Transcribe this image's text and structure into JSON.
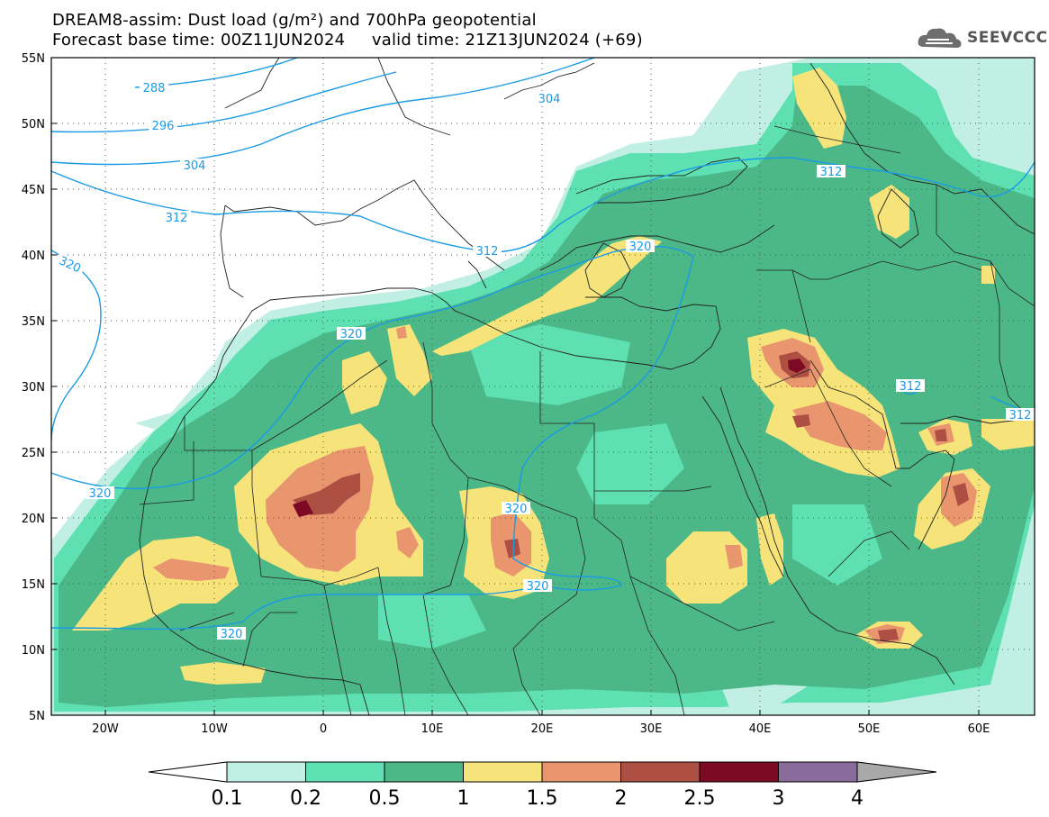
{
  "title": {
    "line1": "DREAM8-assim: Dust load (g/m²) and 700hPa geopotential",
    "line2": "Forecast base time: 00Z11JUN2024     valid time: 21Z13JUN2024 (+69)"
  },
  "logo_text": "SEEVCCC",
  "map": {
    "lat_labels": [
      "55N",
      "50N",
      "45N",
      "40N",
      "35N",
      "30N",
      "25N",
      "20N",
      "15N",
      "10N",
      "5N"
    ],
    "lon_labels": [
      "20W",
      "10W",
      "0",
      "10E",
      "20E",
      "30E",
      "40E",
      "50E",
      "60E"
    ],
    "contour_labels": [
      "288",
      "296",
      "304",
      "304",
      "312",
      "312",
      "312",
      "312",
      "312",
      "320",
      "320",
      "320",
      "320",
      "320",
      "320",
      "320"
    ]
  },
  "colorbar": {
    "ticks": [
      "0.1",
      "0.2",
      "0.5",
      "1",
      "1.5",
      "2",
      "2.5",
      "3",
      "4"
    ],
    "colors": [
      "#c2efe4",
      "#5fe0b2",
      "#4cb787",
      "#f6e47b",
      "#e9956e",
      "#ad4f42",
      "#7d0a25",
      "#8a6c9c"
    ],
    "under_color": "#ffffff",
    "over_color": "#a8a8a8"
  },
  "colors": {
    "contour": "#1a9be6",
    "border": "#222222",
    "land_bg": "#ffffff"
  }
}
